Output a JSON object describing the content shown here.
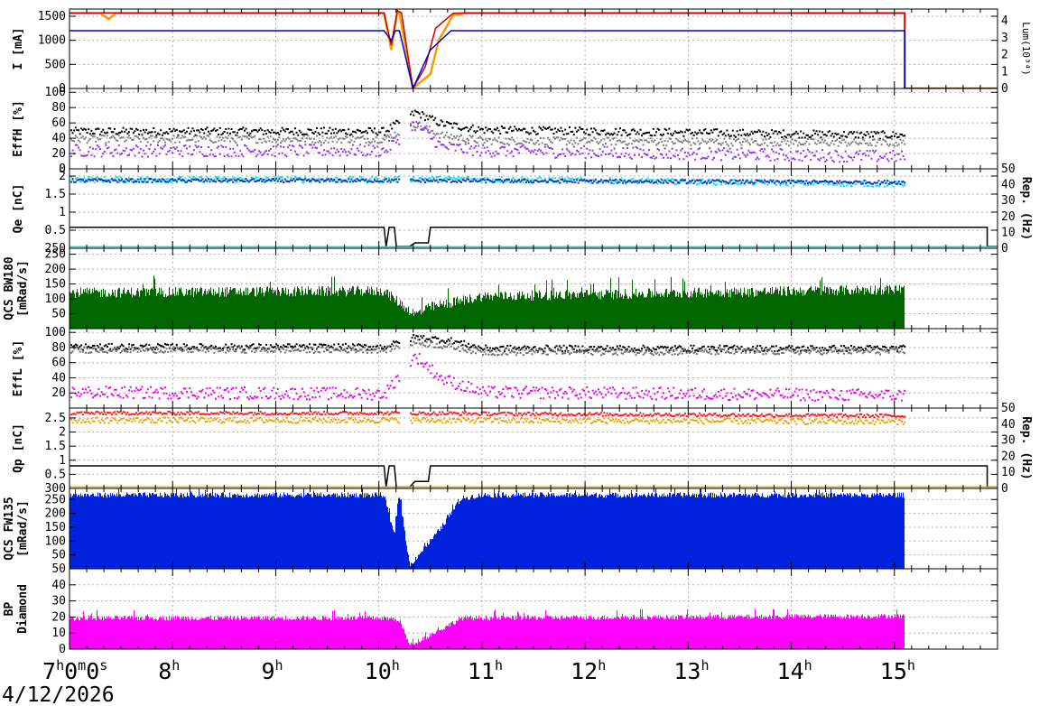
{
  "chart_data": {
    "type": "line",
    "date": "4/12/2026",
    "x_axis": {
      "unit": "hour",
      "range": [
        7,
        16
      ],
      "ticks": [
        {
          "value": 7,
          "label": "7",
          "sup": "h",
          "tail": "0",
          "tail_sup": "m",
          "tail2": "0",
          "tail2_sup": "s"
        },
        {
          "value": 8,
          "label": "8",
          "sup": "h"
        },
        {
          "value": 9,
          "label": "9",
          "sup": "h"
        },
        {
          "value": 10,
          "label": "10",
          "sup": "h"
        },
        {
          "value": 11,
          "label": "11",
          "sup": "h"
        },
        {
          "value": 12,
          "label": "12",
          "sup": "h"
        },
        {
          "value": 13,
          "label": "13",
          "sup": "h"
        },
        {
          "value": 14,
          "label": "14",
          "sup": "h"
        },
        {
          "value": 15,
          "label": "15",
          "sup": "h"
        }
      ]
    },
    "grid": true,
    "panels": [
      {
        "id": "current",
        "ylabel": "I [mA]",
        "ylim": [
          0,
          1650
        ],
        "yticks": [
          0,
          500,
          1000,
          1500
        ],
        "right_axis": {
          "label": "Lum(10³⁴)",
          "ylim": [
            0,
            4.7
          ],
          "ticks": [
            0,
            1,
            2,
            3,
            4
          ]
        },
        "series": [
          {
            "color": "#f0a000",
            "points": [
              [
                7,
                1560
              ],
              [
                7.3,
                1560
              ],
              [
                7.38,
                1440
              ],
              [
                7.45,
                1560
              ],
              [
                10.05,
                1560
              ],
              [
                10.12,
                800
              ],
              [
                10.18,
                1600
              ],
              [
                10.2,
                1560
              ],
              [
                10.33,
                0
              ],
              [
                10.5,
                300
              ],
              [
                10.58,
                1000
              ],
              [
                10.72,
                1520
              ],
              [
                10.85,
                1560
              ],
              [
                15.1,
                1560
              ],
              [
                15.1,
                0
              ],
              [
                16,
                0
              ]
            ]
          },
          {
            "color": "#cc0000",
            "points": [
              [
                7,
                1570
              ],
              [
                10.05,
                1570
              ],
              [
                10.12,
                900
              ],
              [
                10.18,
                1620
              ],
              [
                10.22,
                1570
              ],
              [
                10.33,
                0
              ],
              [
                10.45,
                450
              ],
              [
                10.55,
                1250
              ],
              [
                10.72,
                1560
              ],
              [
                10.85,
                1570
              ],
              [
                15.1,
                1570
              ],
              [
                15.1,
                0
              ],
              [
                16,
                0
              ]
            ]
          },
          {
            "color": "#0000cc",
            "points": [
              [
                7,
                1200
              ],
              [
                10.05,
                1200
              ],
              [
                10.12,
                1000
              ],
              [
                10.16,
                1200
              ],
              [
                10.2,
                1200
              ],
              [
                10.33,
                0
              ],
              [
                10.5,
                800
              ],
              [
                10.7,
                1200
              ],
              [
                15.1,
                1200
              ],
              [
                15.1,
                0
              ],
              [
                16,
                0
              ]
            ]
          }
        ]
      },
      {
        "id": "effh",
        "ylabel": "EffH [%]",
        "ylim": [
          0,
          105
        ],
        "yticks": [
          0,
          20,
          40,
          60,
          80,
          100
        ],
        "scatter": [
          {
            "color": "#000000",
            "base": [
              [
                7,
                50
              ],
              [
                10.05,
                50
              ],
              [
                10.35,
                75
              ],
              [
                10.6,
                60
              ],
              [
                11,
                52
              ],
              [
                15.1,
                45
              ]
            ],
            "spread": 5
          },
          {
            "color": "#808080",
            "base": [
              [
                7,
                40
              ],
              [
                10.05,
                40
              ],
              [
                10.35,
                60
              ],
              [
                10.6,
                45
              ],
              [
                11,
                38
              ],
              [
                15.1,
                35
              ]
            ],
            "spread": 5
          },
          {
            "color": "#9933ee",
            "base": [
              [
                7,
                25
              ],
              [
                10.05,
                25
              ],
              [
                10.35,
                60
              ],
              [
                10.6,
                30
              ],
              [
                11,
                25
              ],
              [
                15.1,
                17
              ]
            ],
            "spread": 8
          }
        ]
      },
      {
        "id": "qe",
        "ylabel": "Qe [nC]",
        "ylim": [
          0,
          2.2
        ],
        "yticks": [
          0.5,
          1,
          1.5,
          2
        ],
        "top_label": "0",
        "right_axis": {
          "label": "Rep. (Hz)",
          "ylim": [
            0,
            50
          ],
          "ticks": [
            0,
            10,
            20,
            30,
            40,
            50
          ]
        },
        "series": [
          {
            "color": "#000000",
            "points": [
              [
                7,
                0.58
              ],
              [
                10.05,
                0.58
              ],
              [
                10.07,
                0.05
              ],
              [
                10.1,
                0.58
              ],
              [
                10.15,
                0.58
              ],
              [
                10.17,
                0.05
              ],
              [
                10.3,
                0.05
              ],
              [
                10.35,
                0.15
              ],
              [
                10.48,
                0.15
              ],
              [
                10.5,
                0.58
              ],
              [
                15.9,
                0.58
              ],
              [
                15.9,
                0.05
              ],
              [
                16,
                0.05
              ]
            ]
          },
          {
            "color": "#00dddd",
            "points": [
              [
                7,
                0.04
              ],
              [
                16,
                0.04
              ]
            ]
          }
        ],
        "scatter": [
          {
            "color": "#00e8e8",
            "base": [
              [
                7,
                1.93
              ],
              [
                10.05,
                1.93
              ],
              [
                10.5,
                1.95
              ],
              [
                15.1,
                1.8
              ]
            ],
            "spread": 0.08
          },
          {
            "color": "#1030c0",
            "base": [
              [
                7,
                1.9
              ],
              [
                10.05,
                1.9
              ],
              [
                15.1,
                1.85
              ]
            ],
            "spread": 0.05
          }
        ]
      },
      {
        "id": "qcs_bw",
        "ylabel": "QCS BW180",
        "ylabel2": "[mRad/s]",
        "ylim": [
          0,
          270
        ],
        "yticks": [
          50,
          100,
          150,
          200,
          250
        ],
        "top_label": "250",
        "bars": {
          "color": "#006600",
          "base": [
            [
              7,
              100
            ],
            [
              10.05,
              105
            ],
            [
              10.35,
              40
            ],
            [
              10.5,
              60
            ],
            [
              11,
              90
            ],
            [
              15.1,
              110
            ]
          ],
          "spread": 45
        }
      },
      {
        "id": "effl",
        "ylabel": "EffL [%]",
        "ylim": [
          0,
          105
        ],
        "yticks": [
          20,
          40,
          60,
          80,
          100
        ],
        "scatter": [
          {
            "color": "#000000",
            "base": [
              [
                7,
                82
              ],
              [
                10.05,
                82
              ],
              [
                10.35,
                95
              ],
              [
                10.7,
                90
              ],
              [
                11,
                80
              ],
              [
                15.1,
                80
              ]
            ],
            "spread": 4
          },
          {
            "color": "#707070",
            "base": [
              [
                7,
                78
              ],
              [
                10.05,
                78
              ],
              [
                10.35,
                88
              ],
              [
                10.7,
                82
              ],
              [
                11,
                75
              ],
              [
                15.1,
                76
              ]
            ],
            "spread": 4
          },
          {
            "color": "#ee00ee",
            "base": [
              [
                7,
                22
              ],
              [
                10.05,
                20
              ],
              [
                10.35,
                70
              ],
              [
                10.6,
                40
              ],
              [
                11,
                22
              ],
              [
                15.1,
                18
              ]
            ],
            "spread": 8
          }
        ]
      },
      {
        "id": "qp",
        "ylabel": "Qp [nC]",
        "ylim": [
          0,
          2.85
        ],
        "yticks": [
          0.5,
          1,
          1.5,
          2,
          2.5
        ],
        "right_axis": {
          "label": "Rep. (Hz)",
          "ylim": [
            0,
            50
          ],
          "ticks": [
            0,
            10,
            20,
            30,
            40,
            50
          ]
        },
        "series": [
          {
            "color": "#000000",
            "points": [
              [
                7,
                0.8
              ],
              [
                10.05,
                0.8
              ],
              [
                10.07,
                0.05
              ],
              [
                10.1,
                0.8
              ],
              [
                10.15,
                0.8
              ],
              [
                10.17,
                0.05
              ],
              [
                10.3,
                0.05
              ],
              [
                10.35,
                0.25
              ],
              [
                10.48,
                0.25
              ],
              [
                10.5,
                0.8
              ],
              [
                15.9,
                0.8
              ],
              [
                15.9,
                0.05
              ],
              [
                16,
                0.05
              ]
            ]
          },
          {
            "color": "#f0a000",
            "points": [
              [
                7,
                0.05
              ],
              [
                16,
                0.05
              ]
            ]
          }
        ],
        "scatter": [
          {
            "color": "#ff1a1a",
            "base": [
              [
                7,
                2.7
              ],
              [
                10.05,
                2.7
              ],
              [
                15.1,
                2.6
              ]
            ],
            "spread": 0.06
          },
          {
            "color": "#f0a000",
            "base": [
              [
                7,
                2.45
              ],
              [
                10.05,
                2.45
              ],
              [
                15.1,
                2.4
              ]
            ],
            "spread": 0.1
          }
        ]
      },
      {
        "id": "qcs_fw",
        "ylabel": "QCS FW135",
        "ylabel2": "[mRad/s]",
        "ylim": [
          0,
          290
        ],
        "yticks": [
          50,
          100,
          150,
          200,
          250
        ],
        "top_label": "300",
        "bars": {
          "color": "#0022dd",
          "base": [
            [
              7,
              220
            ],
            [
              10.05,
              220
            ],
            [
              10.15,
              100
            ],
            [
              10.2,
              220
            ],
            [
              10.3,
              10
            ],
            [
              10.6,
              120
            ],
            [
              10.8,
              210
            ],
            [
              11,
              220
            ],
            [
              15.1,
              220
            ]
          ],
          "spread": 25
        }
      },
      {
        "id": "bp",
        "ylabel": "BP",
        "ylabel2": "Diamond",
        "ylim": [
          0,
          50
        ],
        "yticks": [
          0,
          10,
          20,
          30,
          40
        ],
        "top_label": "50",
        "bars": {
          "color": "#ff00ff",
          "base": [
            [
              7,
              16
            ],
            [
              10.05,
              16
            ],
            [
              10.2,
              15
            ],
            [
              10.3,
              2
            ],
            [
              10.6,
              10
            ],
            [
              10.8,
              16
            ],
            [
              15.1,
              17
            ]
          ],
          "spread": 4
        }
      }
    ]
  }
}
